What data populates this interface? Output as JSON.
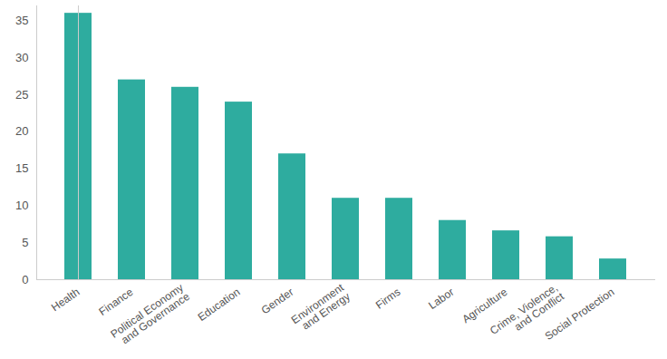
{
  "chart_data": {
    "type": "bar",
    "categories": [
      "Health",
      "Finance",
      "Political Economy and Governance",
      "Education",
      "Gender",
      "Environment and Energy",
      "Firms",
      "Labor",
      "Agriculture",
      "Crime, Violence, and Conflict",
      "Social Protection"
    ],
    "values": [
      36,
      27,
      26,
      24,
      17,
      11,
      11,
      8,
      6.6,
      5.8,
      2.8
    ],
    "color": "#2eac9f",
    "ylim": [
      0,
      37
    ],
    "yticks": [
      0,
      5,
      10,
      15,
      20,
      25,
      30,
      35
    ],
    "grid": false
  }
}
